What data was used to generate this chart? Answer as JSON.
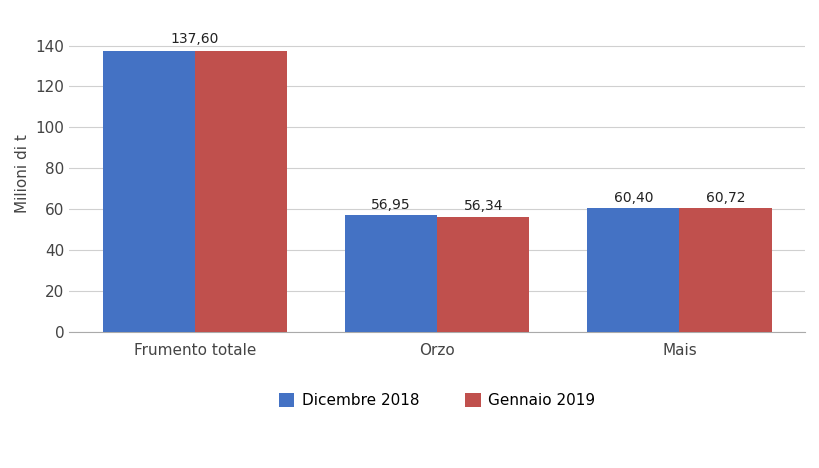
{
  "categories": [
    "Frumento totale",
    "Orzo",
    "Mais"
  ],
  "series": [
    {
      "label": "Dicembre 2018",
      "values": [
        137.6,
        56.95,
        60.4
      ],
      "color": "#4472C4"
    },
    {
      "label": "Gennaio 2019",
      "values": [
        137.6,
        56.34,
        60.72
      ],
      "color": "#C0504D"
    }
  ],
  "bar_labels_centered": [
    {
      "text": "137,60",
      "cat_idx": 0,
      "centered_between": true
    }
  ],
  "bar_labels_individual": [
    {
      "text": "56,95",
      "series_idx": 0,
      "cat_idx": 1
    },
    {
      "text": "56,34",
      "series_idx": 1,
      "cat_idx": 1
    },
    {
      "text": "60,40",
      "series_idx": 0,
      "cat_idx": 2
    },
    {
      "text": "60,72",
      "series_idx": 1,
      "cat_idx": 2
    }
  ],
  "ylabel": "Milioni di t",
  "ylim": [
    0,
    155
  ],
  "yticks": [
    0,
    20,
    40,
    60,
    80,
    100,
    120,
    140
  ],
  "bar_width": 0.38,
  "background_color": "#ffffff",
  "grid_color": "#d0d0d0",
  "label_fontsize": 10,
  "axis_fontsize": 11,
  "tick_fontsize": 11,
  "legend_fontsize": 11
}
